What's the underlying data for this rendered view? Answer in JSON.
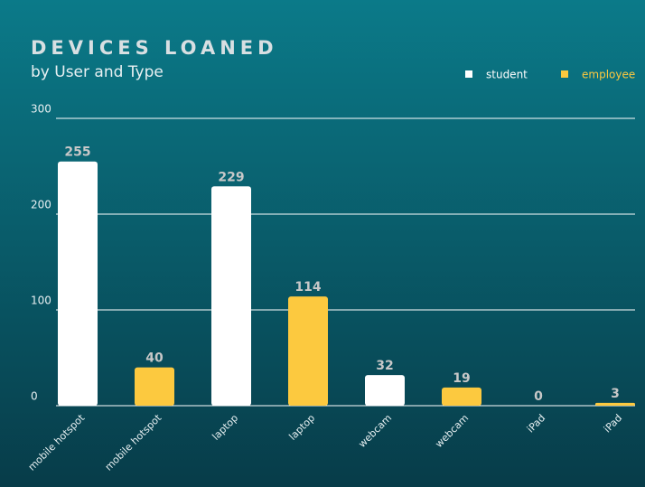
{
  "chart_data": {
    "type": "bar",
    "title": "DEVICES LOANED",
    "subtitle": "by User and Type",
    "categories": [
      "mobile hotspot",
      "mobile hotspot",
      "laptop",
      "laptop",
      "webcam",
      "webcam",
      "iPad",
      "iPad"
    ],
    "series": [
      {
        "name": "student",
        "color": "#ffffff",
        "values": [
          255,
          null,
          229,
          null,
          32,
          null,
          0,
          null
        ]
      },
      {
        "name": "employee",
        "color": "#fcc93f",
        "values": [
          null,
          40,
          null,
          114,
          null,
          19,
          null,
          3
        ]
      }
    ],
    "ylim": [
      0,
      300
    ],
    "yticks": [
      0,
      100,
      200,
      300
    ],
    "grid": true,
    "legend": "top-right"
  }
}
